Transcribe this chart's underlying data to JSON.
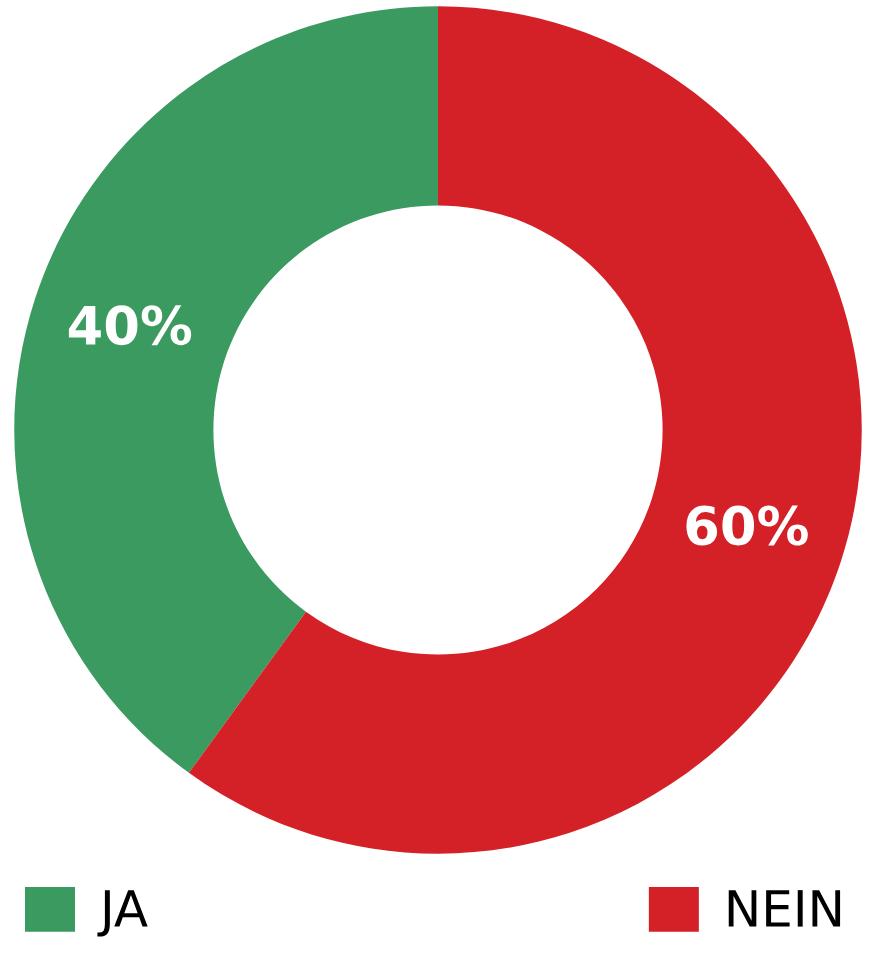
{
  "chart_data": {
    "type": "donut",
    "categories": [
      "JA",
      "NEIN"
    ],
    "values": [
      40,
      60
    ],
    "colors": [
      "#3a9a5f",
      "#d42027"
    ],
    "value_labels": [
      "40%",
      "60%"
    ],
    "legend": "bottom"
  }
}
